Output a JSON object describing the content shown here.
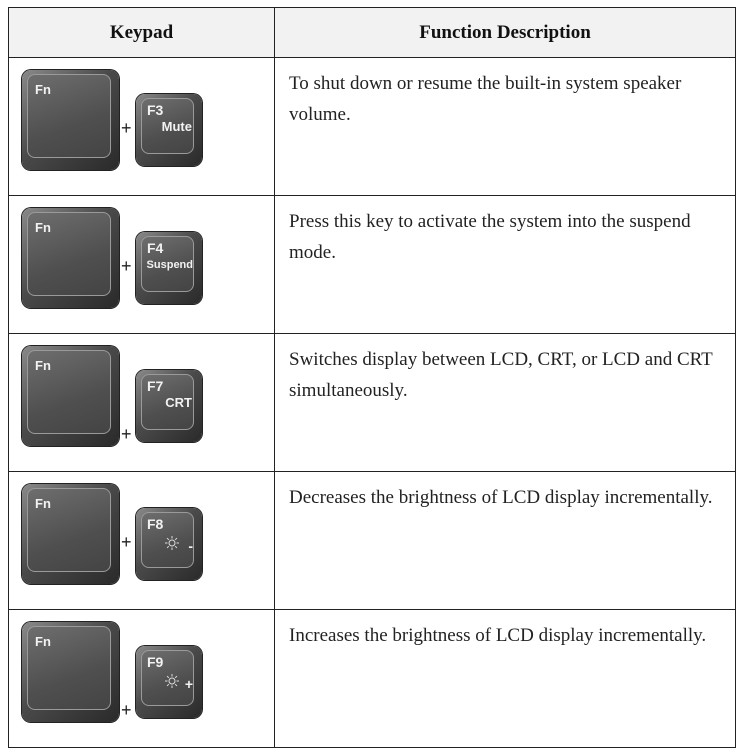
{
  "table": {
    "header": [
      "Keypad",
      "Function Description"
    ],
    "rows": [
      {
        "fn": "Fn",
        "plus": "+",
        "key": "F3",
        "sub": "Mute",
        "description": "To shut down or resume the built-in system speaker volume."
      },
      {
        "fn": "Fn",
        "plus": "+",
        "key": "F4",
        "sub": "Suspend",
        "description": "Press this key to activate the system into the suspend mode."
      },
      {
        "fn": "Fn",
        "plus": "+",
        "key": "F7",
        "sub": "CRT",
        "description": "Switches display between LCD, CRT, or LCD and CRT simultaneously."
      },
      {
        "fn": "Fn",
        "plus": "+",
        "key": "F8",
        "sub": "-",
        "icon": "sun",
        "description": "Decreases the brightness of LCD display incrementally."
      },
      {
        "fn": "Fn",
        "plus": "+",
        "key": "F9",
        "sub": "+",
        "icon": "sun",
        "description": "Increases the brightness of LCD display incrementally."
      }
    ]
  }
}
